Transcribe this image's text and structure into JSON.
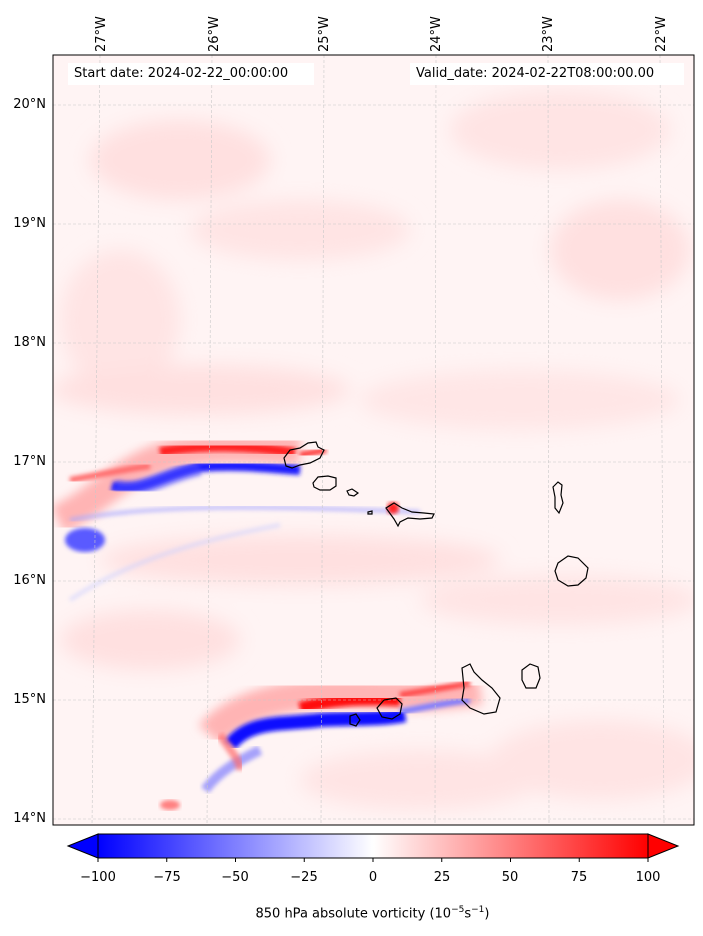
{
  "map": {
    "start_label": "Start date: 2024-02-22_00:00:00",
    "valid_label": "Valid_date: 2024-02-22T08:00:00.00",
    "lon_labels": [
      "27°W",
      "26°W",
      "25°W",
      "24°W",
      "23°W",
      "22°W"
    ],
    "lat_labels": [
      "20°N",
      "19°N",
      "18°N",
      "17°N",
      "16°N",
      "15°N",
      "14°N"
    ],
    "lon_values": [
      -27,
      -26,
      -25,
      -24,
      -23,
      -22
    ],
    "lat_values": [
      20,
      19,
      18,
      17,
      16,
      15,
      14
    ],
    "gridlines": true,
    "colormap": "bwr",
    "colors": {
      "positive": "#ff0000",
      "negative": "#0000ff",
      "neutral": "#ffffff"
    }
  },
  "colorbar": {
    "label_prefix": "850 hPa absolute vorticity (10",
    "label_exp1": "−5",
    "label_mid": "s",
    "label_exp2": "−1",
    "label_suffix": ")",
    "ticks": [
      "−100",
      "−75",
      "−50",
      "−25",
      "0",
      "25",
      "50",
      "75",
      "100"
    ],
    "tick_values": [
      -100,
      -75,
      -50,
      -25,
      0,
      25,
      50,
      75,
      100
    ],
    "range": [
      -100,
      100
    ],
    "extend": "both"
  }
}
